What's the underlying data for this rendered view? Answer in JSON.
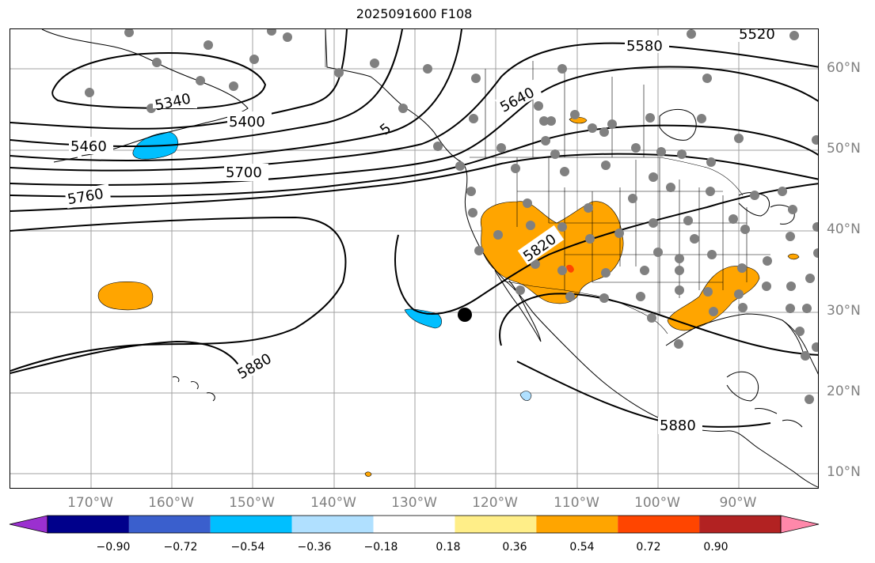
{
  "title": "2025091600 F108",
  "lat_labels": [
    "60°N",
    "50°N",
    "40°N",
    "30°N",
    "20°N",
    "10°N"
  ],
  "lon_labels": [
    "170°W",
    "160°W",
    "150°W",
    "140°W",
    "130°W",
    "120°W",
    "110°W",
    "100°W",
    "90°W"
  ],
  "contour_labels": [
    "5580",
    "5520",
    "5340",
    "5400",
    "5460",
    "5640",
    "5700",
    "5760",
    "5820",
    "5880",
    "5880",
    "5"
  ],
  "colorbar": {
    "colors": [
      "#9b30d0",
      "#00008b",
      "#3a5fcd",
      "#00bfff",
      "#b0e0ff",
      "#ffffff",
      "#ffee88",
      "#ffa500",
      "#ff4500",
      "#b22222",
      "#ff88aa"
    ],
    "tick_labels": [
      "−0.90",
      "−0.72",
      "−0.54",
      "−0.36",
      "−0.18",
      "0.18",
      "0.36",
      "0.54",
      "0.72",
      "0.90"
    ]
  },
  "colors": {
    "grid": "#a0a0a0",
    "contour": "#000000",
    "station": "#808080",
    "positive_fill": "#ffa500",
    "negative_fill": "#00bfff",
    "strong_positive": "#ff4500",
    "light_negative": "#b0e0ff"
  }
}
